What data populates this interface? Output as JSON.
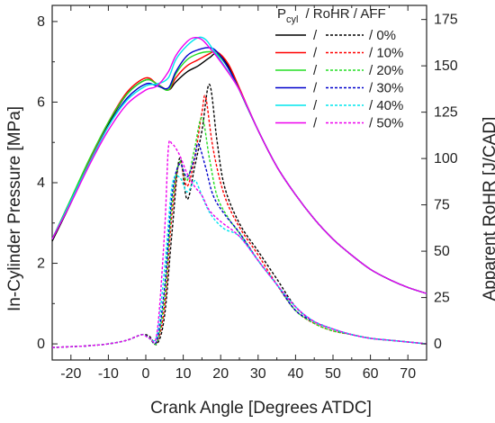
{
  "chart_data": {
    "type": "line",
    "xlabel": "Crank Angle [Degrees ATDC]",
    "ylabel": "In-Cylinder Pressure [MPa]",
    "y2label": "Apparent RoHR [J/CAD]",
    "xlim": [
      -25,
      75
    ],
    "ylim": [
      -0.4,
      8.4
    ],
    "y2lim": [
      -8.7,
      182.6
    ],
    "xticks": [
      "-20",
      "-10",
      "0",
      "10",
      "20",
      "30",
      "40",
      "50",
      "60",
      "70"
    ],
    "yticks": [
      "0",
      "2",
      "4",
      "6",
      "8"
    ],
    "y2ticks": [
      "0",
      "25",
      "50",
      "75",
      "100",
      "125",
      "150",
      "175"
    ],
    "grid": false,
    "legend": {
      "position": "top-right",
      "header_main": "P",
      "header_sub": "cyl",
      "header_rest": "/ RoHR / AFF",
      "separator": "/",
      "labels": [
        "/   0%",
        "/ 10%",
        "/ 20%",
        "/ 30%",
        "/ 40%",
        "/ 50%"
      ]
    },
    "series": [
      {
        "aff": "0%",
        "color": "#000000",
        "pressure": [
          [
            -25,
            2.55
          ],
          [
            -20,
            3.5
          ],
          [
            -15,
            4.5
          ],
          [
            -10,
            5.45
          ],
          [
            -5,
            6.2
          ],
          [
            0,
            6.55
          ],
          [
            3,
            6.45
          ],
          [
            6,
            6.3
          ],
          [
            8,
            6.5
          ],
          [
            11,
            6.75
          ],
          [
            14,
            6.9
          ],
          [
            17,
            7.1
          ],
          [
            19,
            7.2
          ],
          [
            22,
            6.9
          ],
          [
            25,
            6.3
          ],
          [
            30,
            5.3
          ],
          [
            35,
            4.4
          ],
          [
            40,
            3.7
          ],
          [
            45,
            3.1
          ],
          [
            50,
            2.6
          ],
          [
            55,
            2.2
          ],
          [
            60,
            1.85
          ],
          [
            65,
            1.6
          ],
          [
            70,
            1.4
          ],
          [
            75,
            1.25
          ]
        ],
        "rohr": [
          [
            -25,
            -2
          ],
          [
            -20,
            -1.5
          ],
          [
            -15,
            -1
          ],
          [
            -10,
            0
          ],
          [
            -5,
            2
          ],
          [
            -1,
            5
          ],
          [
            1,
            4
          ],
          [
            3,
            0
          ],
          [
            5,
            15
          ],
          [
            7,
            60
          ],
          [
            9,
            100
          ],
          [
            11,
            78
          ],
          [
            13,
            95
          ],
          [
            15,
            115
          ],
          [
            17,
            140
          ],
          [
            19,
            110
          ],
          [
            21,
            85
          ],
          [
            25,
            65
          ],
          [
            30,
            50
          ],
          [
            35,
            35
          ],
          [
            40,
            20
          ],
          [
            45,
            12
          ],
          [
            50,
            8
          ],
          [
            55,
            5
          ],
          [
            60,
            3
          ],
          [
            65,
            2
          ],
          [
            70,
            1
          ],
          [
            75,
            0
          ]
        ]
      },
      {
        "aff": "10%",
        "color": "#ff0000",
        "pressure": [
          [
            -25,
            2.6
          ],
          [
            -20,
            3.55
          ],
          [
            -15,
            4.55
          ],
          [
            -10,
            5.5
          ],
          [
            -5,
            6.25
          ],
          [
            0,
            6.6
          ],
          [
            3,
            6.45
          ],
          [
            6,
            6.3
          ],
          [
            8,
            6.6
          ],
          [
            11,
            6.9
          ],
          [
            14,
            7.05
          ],
          [
            17,
            7.2
          ],
          [
            19,
            7.25
          ],
          [
            22,
            6.95
          ],
          [
            25,
            6.35
          ],
          [
            30,
            5.3
          ],
          [
            35,
            4.4
          ],
          [
            40,
            3.7
          ],
          [
            45,
            3.1
          ],
          [
            50,
            2.6
          ],
          [
            55,
            2.2
          ],
          [
            60,
            1.85
          ],
          [
            65,
            1.6
          ],
          [
            70,
            1.4
          ],
          [
            75,
            1.25
          ]
        ],
        "rohr": [
          [
            -25,
            -2
          ],
          [
            -20,
            -1.5
          ],
          [
            -15,
            -1
          ],
          [
            -10,
            0
          ],
          [
            -5,
            2
          ],
          [
            -1,
            5
          ],
          [
            1,
            3
          ],
          [
            3,
            1
          ],
          [
            5,
            20
          ],
          [
            7,
            70
          ],
          [
            9,
            98
          ],
          [
            11,
            85
          ],
          [
            13,
            100
          ],
          [
            15,
            125
          ],
          [
            16,
            133
          ],
          [
            18,
            105
          ],
          [
            21,
            80
          ],
          [
            25,
            63
          ],
          [
            30,
            48
          ],
          [
            35,
            32
          ],
          [
            40,
            18
          ],
          [
            45,
            11
          ],
          [
            50,
            7
          ],
          [
            55,
            5
          ],
          [
            60,
            3
          ],
          [
            65,
            2
          ],
          [
            70,
            1
          ],
          [
            75,
            0
          ]
        ]
      },
      {
        "aff": "20%",
        "color": "#22dd22",
        "pressure": [
          [
            -25,
            2.6
          ],
          [
            -20,
            3.6
          ],
          [
            -15,
            4.6
          ],
          [
            -10,
            5.5
          ],
          [
            -5,
            6.2
          ],
          [
            0,
            6.55
          ],
          [
            3,
            6.45
          ],
          [
            6,
            6.3
          ],
          [
            8,
            6.7
          ],
          [
            11,
            7.05
          ],
          [
            14,
            7.2
          ],
          [
            17,
            7.25
          ],
          [
            19,
            7.2
          ],
          [
            22,
            6.85
          ],
          [
            25,
            6.3
          ],
          [
            30,
            5.3
          ],
          [
            35,
            4.4
          ],
          [
            40,
            3.7
          ],
          [
            45,
            3.1
          ],
          [
            50,
            2.6
          ],
          [
            55,
            2.2
          ],
          [
            60,
            1.85
          ],
          [
            65,
            1.6
          ],
          [
            70,
            1.4
          ],
          [
            75,
            1.25
          ]
        ],
        "rohr": [
          [
            -25,
            -2
          ],
          [
            -20,
            -1.5
          ],
          [
            -15,
            -1
          ],
          [
            -10,
            0
          ],
          [
            -5,
            2
          ],
          [
            -1,
            5
          ],
          [
            1,
            3
          ],
          [
            3,
            1
          ],
          [
            5,
            25
          ],
          [
            7,
            75
          ],
          [
            9,
            98
          ],
          [
            11,
            88
          ],
          [
            13,
            105
          ],
          [
            15,
            122
          ],
          [
            17,
            100
          ],
          [
            19,
            80
          ],
          [
            22,
            68
          ],
          [
            26,
            57
          ],
          [
            30,
            45
          ],
          [
            35,
            32
          ],
          [
            40,
            18
          ],
          [
            45,
            11
          ],
          [
            50,
            7
          ],
          [
            55,
            5
          ],
          [
            60,
            3
          ],
          [
            65,
            2
          ],
          [
            70,
            1
          ],
          [
            75,
            0
          ]
        ]
      },
      {
        "aff": "30%",
        "color": "#0000cc",
        "pressure": [
          [
            -25,
            2.6
          ],
          [
            -20,
            3.55
          ],
          [
            -15,
            4.5
          ],
          [
            -10,
            5.4
          ],
          [
            -5,
            6.1
          ],
          [
            0,
            6.45
          ],
          [
            3,
            6.4
          ],
          [
            6,
            6.35
          ],
          [
            8,
            6.75
          ],
          [
            11,
            7.15
          ],
          [
            14,
            7.3
          ],
          [
            17,
            7.35
          ],
          [
            19,
            7.25
          ],
          [
            22,
            6.85
          ],
          [
            25,
            6.3
          ],
          [
            30,
            5.3
          ],
          [
            35,
            4.4
          ],
          [
            40,
            3.7
          ],
          [
            45,
            3.1
          ],
          [
            50,
            2.6
          ],
          [
            55,
            2.2
          ],
          [
            60,
            1.85
          ],
          [
            65,
            1.6
          ],
          [
            70,
            1.4
          ],
          [
            75,
            1.25
          ]
        ],
        "rohr": [
          [
            -25,
            -2
          ],
          [
            -20,
            -1.5
          ],
          [
            -15,
            -1
          ],
          [
            -10,
            0
          ],
          [
            -5,
            2
          ],
          [
            -1,
            5
          ],
          [
            1,
            3
          ],
          [
            3,
            2
          ],
          [
            5,
            30
          ],
          [
            7,
            80
          ],
          [
            9,
            97
          ],
          [
            11,
            90
          ],
          [
            13,
            100
          ],
          [
            14,
            108
          ],
          [
            16,
            95
          ],
          [
            18,
            80
          ],
          [
            21,
            70
          ],
          [
            25,
            60
          ],
          [
            30,
            45
          ],
          [
            35,
            32
          ],
          [
            40,
            18
          ],
          [
            45,
            12
          ],
          [
            50,
            8
          ],
          [
            55,
            5
          ],
          [
            60,
            3
          ],
          [
            65,
            2
          ],
          [
            70,
            1
          ],
          [
            75,
            0
          ]
        ]
      },
      {
        "aff": "40%",
        "color": "#00e5ee",
        "pressure": [
          [
            -25,
            2.6
          ],
          [
            -20,
            3.55
          ],
          [
            -15,
            4.5
          ],
          [
            -10,
            5.4
          ],
          [
            -5,
            6.05
          ],
          [
            0,
            6.4
          ],
          [
            3,
            6.45
          ],
          [
            6,
            6.6
          ],
          [
            8,
            7.05
          ],
          [
            11,
            7.4
          ],
          [
            14,
            7.6
          ],
          [
            16,
            7.55
          ],
          [
            18,
            7.3
          ],
          [
            21,
            6.9
          ],
          [
            25,
            6.3
          ],
          [
            30,
            5.3
          ],
          [
            35,
            4.4
          ],
          [
            40,
            3.7
          ],
          [
            45,
            3.1
          ],
          [
            50,
            2.6
          ],
          [
            55,
            2.2
          ],
          [
            60,
            1.85
          ],
          [
            65,
            1.6
          ],
          [
            70,
            1.4
          ],
          [
            75,
            1.25
          ]
        ],
        "rohr": [
          [
            -25,
            -2
          ],
          [
            -20,
            -1.5
          ],
          [
            -15,
            -1
          ],
          [
            -10,
            0
          ],
          [
            -5,
            2
          ],
          [
            -1,
            5
          ],
          [
            1,
            3
          ],
          [
            3,
            5
          ],
          [
            5,
            40
          ],
          [
            7,
            85
          ],
          [
            9,
            90
          ],
          [
            11,
            82
          ],
          [
            13,
            88
          ],
          [
            14,
            85
          ],
          [
            16,
            75
          ],
          [
            18,
            68
          ],
          [
            21,
            62
          ],
          [
            25,
            58
          ],
          [
            30,
            45
          ],
          [
            35,
            32
          ],
          [
            40,
            20
          ],
          [
            45,
            12
          ],
          [
            50,
            8
          ],
          [
            55,
            5
          ],
          [
            60,
            3
          ],
          [
            65,
            2
          ],
          [
            70,
            1
          ],
          [
            75,
            0
          ]
        ]
      },
      {
        "aff": "50%",
        "color": "#ee00ee",
        "pressure": [
          [
            -25,
            2.6
          ],
          [
            -20,
            3.5
          ],
          [
            -15,
            4.45
          ],
          [
            -10,
            5.3
          ],
          [
            -5,
            5.95
          ],
          [
            0,
            6.3
          ],
          [
            3,
            6.4
          ],
          [
            6,
            6.75
          ],
          [
            8,
            7.15
          ],
          [
            11,
            7.5
          ],
          [
            13,
            7.6
          ],
          [
            15,
            7.55
          ],
          [
            17,
            7.35
          ],
          [
            20,
            7.0
          ],
          [
            25,
            6.3
          ],
          [
            30,
            5.3
          ],
          [
            35,
            4.4
          ],
          [
            40,
            3.7
          ],
          [
            45,
            3.1
          ],
          [
            50,
            2.6
          ],
          [
            55,
            2.2
          ],
          [
            60,
            1.85
          ],
          [
            65,
            1.6
          ],
          [
            70,
            1.4
          ],
          [
            75,
            1.25
          ]
        ],
        "rohr": [
          [
            -25,
            -2
          ],
          [
            -20,
            -1.5
          ],
          [
            -15,
            -1
          ],
          [
            -10,
            0
          ],
          [
            -5,
            2
          ],
          [
            -1,
            5
          ],
          [
            1,
            3
          ],
          [
            3,
            6
          ],
          [
            5,
            60
          ],
          [
            6,
            105
          ],
          [
            7,
            108
          ],
          [
            9,
            102
          ],
          [
            11,
            92
          ],
          [
            13,
            85
          ],
          [
            15,
            80
          ],
          [
            17,
            72
          ],
          [
            20,
            66
          ],
          [
            25,
            58
          ],
          [
            30,
            45
          ],
          [
            35,
            32
          ],
          [
            40,
            20
          ],
          [
            45,
            12
          ],
          [
            50,
            8
          ],
          [
            55,
            5
          ],
          [
            60,
            3
          ],
          [
            65,
            2
          ],
          [
            70,
            1
          ],
          [
            75,
            0
          ]
        ]
      }
    ]
  }
}
